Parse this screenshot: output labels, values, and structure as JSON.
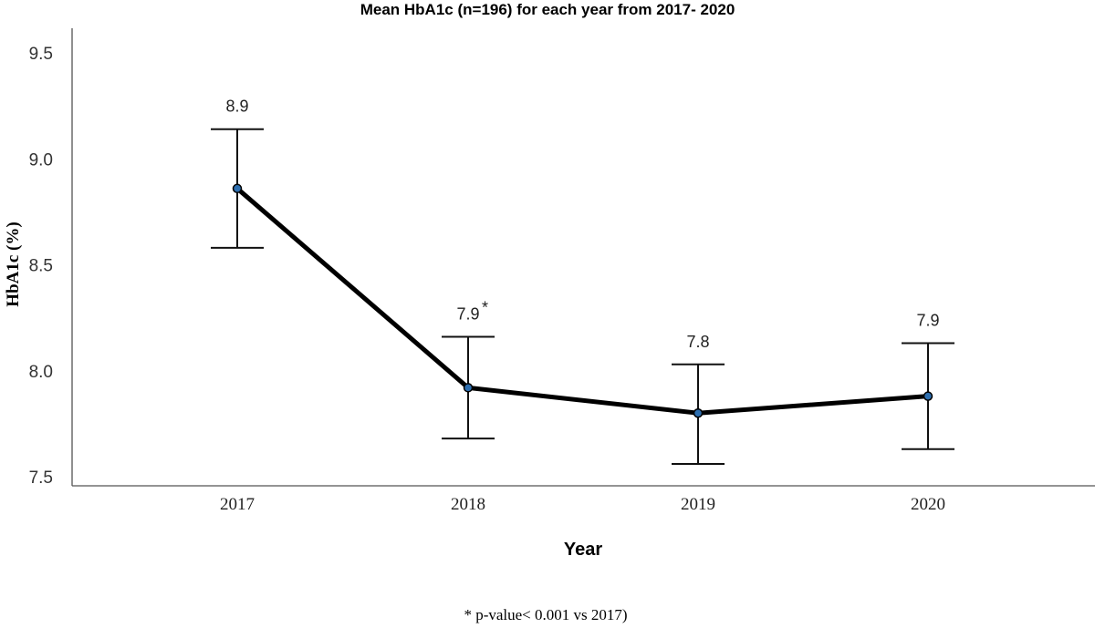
{
  "chart_data": {
    "type": "line",
    "title": "Mean HbA1c (n=196) for each year from 2017- 2020",
    "xlabel": "Year",
    "ylabel": "HbA1c (%)",
    "categories": [
      "2017",
      "2018",
      "2019",
      "2020"
    ],
    "series": [
      {
        "name": "Mean HbA1c",
        "values": [
          8.86,
          7.92,
          7.8,
          7.88
        ],
        "error_upper": [
          9.14,
          8.16,
          8.03,
          8.13
        ],
        "error_lower": [
          8.58,
          7.68,
          7.56,
          7.63
        ],
        "data_labels": [
          "8.9",
          "7.9",
          "7.8",
          "7.9"
        ],
        "label_marks": [
          "",
          "*",
          "",
          ""
        ]
      }
    ],
    "yticks": [
      "7.5",
      "8.0",
      "8.5",
      "9.0",
      "9.5"
    ],
    "ytick_values": [
      7.5,
      8.0,
      8.5,
      9.0,
      9.5
    ],
    "ylim": [
      7.455,
      9.61
    ],
    "grid": false,
    "footnote": "* p-value< 0.001 vs 2017)",
    "colors": {
      "line": "#000000",
      "marker": "#2e6fb0",
      "marker_edge": "#000000"
    }
  }
}
